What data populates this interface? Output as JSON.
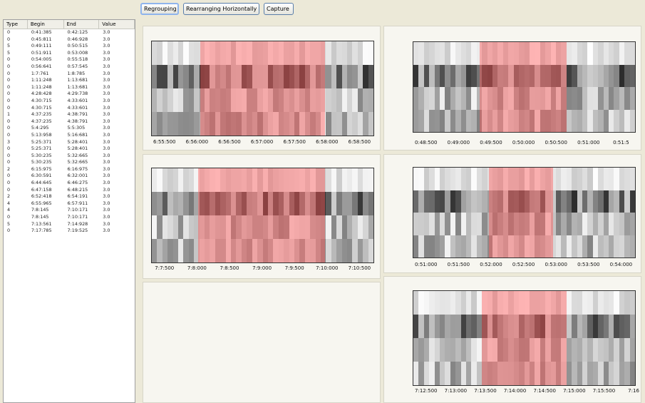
{
  "toolbar": {
    "regrouping": "Regrouping",
    "rearrange": "Rearranging Horizontally",
    "capture": "Capture"
  },
  "table": {
    "headers": [
      "Type",
      "Begin",
      "End",
      "Value"
    ],
    "rows": [
      [
        "0",
        "0:41:385",
        "0:42:125",
        "3.0"
      ],
      [
        "0",
        "0:45:811",
        "0:46:928",
        "3.0"
      ],
      [
        "5",
        "0:49:111",
        "0:50:515",
        "3.0"
      ],
      [
        "5",
        "0:51:911",
        "0:53:008",
        "3.0"
      ],
      [
        "0",
        "0:54:005",
        "0:55:518",
        "3.0"
      ],
      [
        "0",
        "0:56:641",
        "0:57:545",
        "3.0"
      ],
      [
        "0",
        "1:7:761",
        "1:8:785",
        "3.0"
      ],
      [
        "0",
        "1:11:248",
        "1:13:681",
        "3.0"
      ],
      [
        "0",
        "1:11:248",
        "1:13:681",
        "3.0"
      ],
      [
        "0",
        "4:28:428",
        "4:29:738",
        "3.0"
      ],
      [
        "0",
        "4:30:715",
        "4:33:601",
        "3.0"
      ],
      [
        "0",
        "4:30:715",
        "4:33:601",
        "3.0"
      ],
      [
        "1",
        "4:37:235",
        "4:38:791",
        "3.0"
      ],
      [
        "0",
        "4:37:235",
        "4:38:791",
        "3.0"
      ],
      [
        "0",
        "5:4:295",
        "5:5:305",
        "3.0"
      ],
      [
        "0",
        "5:13:958",
        "5:16:681",
        "3.0"
      ],
      [
        "3",
        "5:25:371",
        "5:28:401",
        "3.0"
      ],
      [
        "0",
        "5:25:371",
        "5:28:401",
        "3.0"
      ],
      [
        "0",
        "5:30:235",
        "5:32:665",
        "3.0"
      ],
      [
        "0",
        "5:30:235",
        "5:32:665",
        "3.0"
      ],
      [
        "2",
        "6:15:975",
        "6:16:975",
        "3.0"
      ],
      [
        "0",
        "6:30:591",
        "6:32:001",
        "3.0"
      ],
      [
        "0",
        "6:44:645",
        "6:46:275",
        "3.0"
      ],
      [
        "0",
        "6:47:158",
        "6:48:215",
        "3.0"
      ],
      [
        "2",
        "6:52:418",
        "6:54:191",
        "3.0"
      ],
      [
        "4",
        "6:55:965",
        "6:57:911",
        "3.0"
      ],
      [
        "4",
        "7:8:145",
        "7:10:171",
        "3.0"
      ],
      [
        "0",
        "7:8:145",
        "7:10:171",
        "3.0"
      ],
      [
        "5",
        "7:13:561",
        "7:14:928",
        "3.0"
      ],
      [
        "0",
        "7:17:785",
        "7:19:525",
        "3.0"
      ]
    ]
  },
  "panels": [
    {
      "name": "panel-6-55",
      "ticks": [
        "6:55:500",
        "6:56:000",
        "6:56:500",
        "6:57:000",
        "6:57:500",
        "6:58:000",
        "6:58:500"
      ],
      "highlight_range": [
        0.22,
        0.78
      ],
      "seed": 3
    },
    {
      "name": "panel-0-48",
      "ticks": [
        "0:48:500",
        "0:49:000",
        "0:49:500",
        "0:50:000",
        "0:50:500",
        "0:51:000",
        "0:51:5"
      ],
      "highlight_range": [
        0.3,
        0.69
      ],
      "seed": 7
    },
    {
      "name": "panel-7-7",
      "ticks": [
        "7:7:500",
        "7:8:000",
        "7:8:500",
        "7:9:000",
        "7:9:500",
        "7:10:000",
        "7:10:500"
      ],
      "highlight_range": [
        0.21,
        0.78
      ],
      "seed": 11
    },
    {
      "name": "panel-0-51",
      "ticks": [
        "0:51:000",
        "0:51:500",
        "0:52:000",
        "0:52:500",
        "0:53:000",
        "0:53:500",
        "0:54:000"
      ],
      "highlight_range": [
        0.34,
        0.63
      ],
      "seed": 17
    },
    {
      "name": "panel-7-12",
      "ticks": [
        "7:12:500",
        "7:13:000",
        "7:13:500",
        "7:14:000",
        "7:14:500",
        "7:15:000",
        "7:15:500",
        "7:16"
      ],
      "highlight_range": [
        0.31,
        0.69
      ],
      "seed": 23
    }
  ],
  "colors": {
    "highlight": "#ff5a5a",
    "panel_bg": "#f7f6f0",
    "window_bg": "#ece9d8"
  }
}
